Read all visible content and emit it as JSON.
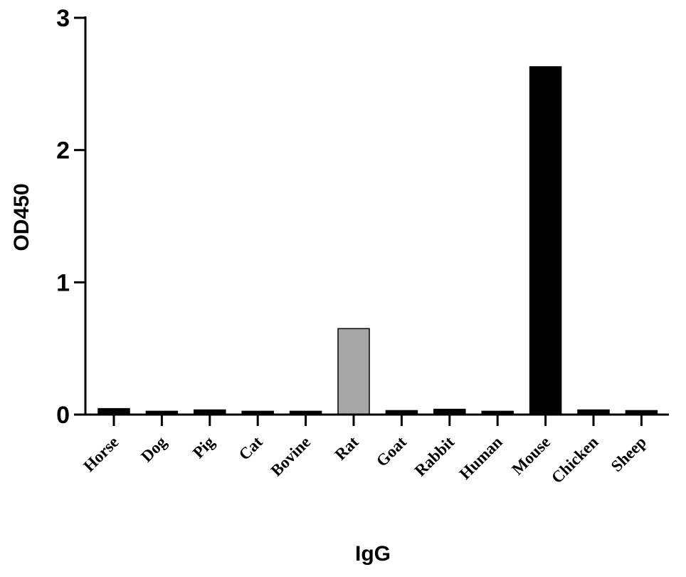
{
  "chart_data": {
    "type": "bar",
    "title": "",
    "xlabel": "IgG",
    "ylabel": "OD450",
    "ylim": [
      0,
      3
    ],
    "yticks": [
      "0",
      "1",
      "2",
      "3"
    ],
    "categories": [
      "Horse",
      "Dog",
      "Pig",
      "Cat",
      "Bovine",
      "Rat",
      "Goat",
      "Rabbit",
      "Human",
      "Mouse",
      "Chicken",
      "Sheep"
    ],
    "values": [
      0.045,
      0.025,
      0.035,
      0.025,
      0.025,
      0.65,
      0.03,
      0.04,
      0.025,
      2.63,
      0.035,
      0.03
    ],
    "colors": [
      "#000000",
      "#000000",
      "#000000",
      "#000000",
      "#000000",
      "#a6a6a6",
      "#000000",
      "#000000",
      "#000000",
      "#000000",
      "#000000",
      "#000000"
    ],
    "grid": false,
    "legend": "none"
  }
}
